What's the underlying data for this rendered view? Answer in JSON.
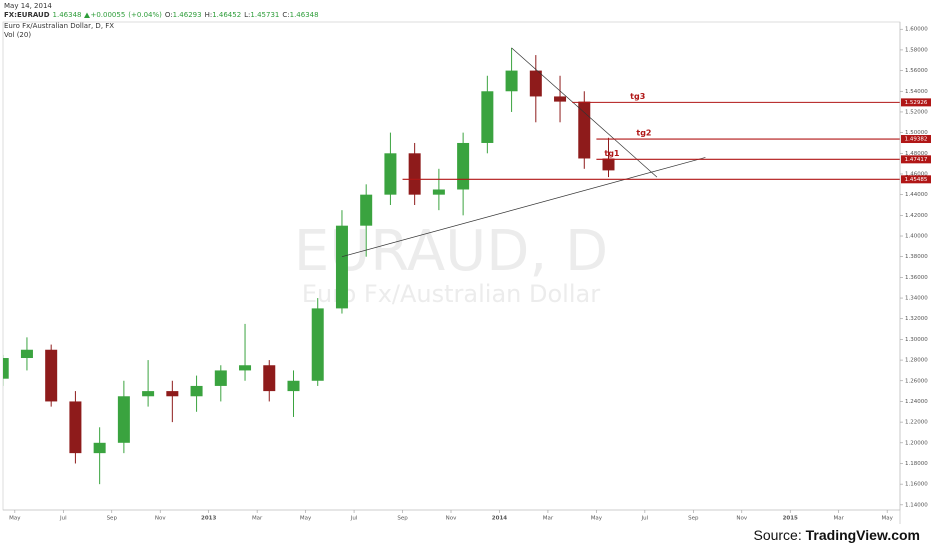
{
  "header": {
    "date": "May 14, 2014",
    "symbol": "FX:EURAUD",
    "last": 1.46348,
    "change": "+0.00055",
    "change_pct": "(+0.04%)",
    "ohlc": [
      {
        "label": "O:",
        "value": 1.46293
      },
      {
        "label": "H:",
        "value": 1.46452
      },
      {
        "label": "L:",
        "value": 1.45731
      },
      {
        "label": "C:",
        "value": 1.46348
      }
    ]
  },
  "watermark": {
    "symbol": "EURAUD, D",
    "name": "Euro Fx/Australian Dollar"
  },
  "source": {
    "prefix": "Source:",
    "site": "TradingView.com"
  },
  "chart_data": {
    "type": "candlestick",
    "title": "Euro Fx/Australian Dollar, D, FX",
    "subtitle": "Vol (20)",
    "x": [
      "2012-04",
      "2012-05",
      "2012-06",
      "2012-07",
      "2012-08",
      "2012-09",
      "2012-10",
      "2012-11",
      "2012-12",
      "2013-01",
      "2013-02",
      "2013-03",
      "2013-04",
      "2013-05",
      "2013-06",
      "2013-07",
      "2013-08",
      "2013-09",
      "2013-10",
      "2013-11",
      "2013-12",
      "2014-01",
      "2014-02",
      "2014-03",
      "2014-04",
      "2014-05"
    ],
    "open": [
      1.262,
      1.282,
      1.29,
      1.24,
      1.19,
      1.2,
      1.245,
      1.25,
      1.245,
      1.255,
      1.27,
      1.275,
      1.25,
      1.26,
      1.33,
      1.41,
      1.44,
      1.48,
      1.44,
      1.445,
      1.49,
      1.54,
      1.56,
      1.535,
      1.53,
      1.475
    ],
    "high": [
      1.285,
      1.302,
      1.295,
      1.25,
      1.215,
      1.26,
      1.28,
      1.26,
      1.265,
      1.275,
      1.315,
      1.28,
      1.27,
      1.34,
      1.425,
      1.45,
      1.5,
      1.49,
      1.465,
      1.5,
      1.555,
      1.582,
      1.575,
      1.555,
      1.54,
      1.495
    ],
    "low": [
      1.255,
      1.27,
      1.235,
      1.18,
      1.16,
      1.19,
      1.235,
      1.22,
      1.23,
      1.24,
      1.26,
      1.24,
      1.225,
      1.255,
      1.325,
      1.38,
      1.43,
      1.43,
      1.425,
      1.42,
      1.48,
      1.52,
      1.51,
      1.51,
      1.465,
      1.457
    ],
    "close": [
      1.282,
      1.29,
      1.24,
      1.19,
      1.2,
      1.245,
      1.25,
      1.245,
      1.255,
      1.27,
      1.275,
      1.25,
      1.26,
      1.33,
      1.41,
      1.44,
      1.48,
      1.44,
      1.445,
      1.49,
      1.54,
      1.56,
      1.535,
      1.53,
      1.475,
      1.46348
    ],
    "up_color": "#3aa33f",
    "down_color": "#8e1b1b",
    "level_color": "#b01616",
    "xlim": [
      "2012-04",
      "2015-06"
    ],
    "xticks": [
      {
        "value": "2012-05",
        "label": "May"
      },
      {
        "value": "2012-07",
        "label": "Jul"
      },
      {
        "value": "2012-09",
        "label": "Sep"
      },
      {
        "value": "2012-11",
        "label": "Nov"
      },
      {
        "value": "2013-01",
        "label": "2013"
      },
      {
        "value": "2013-03",
        "label": "Mar"
      },
      {
        "value": "2013-05",
        "label": "May"
      },
      {
        "value": "2013-07",
        "label": "Jul"
      },
      {
        "value": "2013-09",
        "label": "Sep"
      },
      {
        "value": "2013-11",
        "label": "Nov"
      },
      {
        "value": "2014-01",
        "label": "2014"
      },
      {
        "value": "2014-03",
        "label": "Mar"
      },
      {
        "value": "2014-05",
        "label": "May"
      },
      {
        "value": "2014-07",
        "label": "Jul"
      },
      {
        "value": "2014-09",
        "label": "Sep"
      },
      {
        "value": "2014-11",
        "label": "Nov"
      },
      {
        "value": "2015-01",
        "label": "2015"
      },
      {
        "value": "2015-03",
        "label": "Mar"
      },
      {
        "value": "2015-05",
        "label": "May"
      }
    ],
    "ylim": [
      1.135,
      1.607
    ],
    "yticks": [
      {
        "value": 1.14,
        "label": "1.14000"
      },
      {
        "value": 1.16,
        "label": "1.16000"
      },
      {
        "value": 1.18,
        "label": "1.18000"
      },
      {
        "value": 1.2,
        "label": "1.20000"
      },
      {
        "value": 1.22,
        "label": "1.22000"
      },
      {
        "value": 1.24,
        "label": "1.24000"
      },
      {
        "value": 1.26,
        "label": "1.26000"
      },
      {
        "value": 1.28,
        "label": "1.28000"
      },
      {
        "value": 1.3,
        "label": "1.30000"
      },
      {
        "value": 1.32,
        "label": "1.32000"
      },
      {
        "value": 1.34,
        "label": "1.34000"
      },
      {
        "value": 1.36,
        "label": "1.36000"
      },
      {
        "value": 1.38,
        "label": "1.38000"
      },
      {
        "value": 1.4,
        "label": "1.40000"
      },
      {
        "value": 1.42,
        "label": "1.42000"
      },
      {
        "value": 1.44,
        "label": "1.44000"
      },
      {
        "value": 1.46,
        "label": "1.46000"
      },
      {
        "value": 1.48,
        "label": "1.48000"
      },
      {
        "value": 1.5,
        "label": "1.50000"
      },
      {
        "value": 1.52,
        "label": "1.52000"
      },
      {
        "value": 1.54,
        "label": "1.54000"
      },
      {
        "value": 1.56,
        "label": "1.56000"
      },
      {
        "value": 1.58,
        "label": "1.58000"
      },
      {
        "value": 1.6,
        "label": "1.60000"
      }
    ],
    "levels": [
      {
        "name": "tg3",
        "value": 1.52926,
        "start": "2014-04"
      },
      {
        "name": "tg2",
        "value": 1.49382,
        "start": "2014-05"
      },
      {
        "name": "tg1",
        "value": 1.47417,
        "start": "2014-05"
      },
      {
        "value": 1.45485,
        "start": "2013-09"
      }
    ],
    "trendlines": [
      {
        "x": [
          "2014-01",
          "2014-07"
        ],
        "y": [
          1.582,
          1.457
        ]
      },
      {
        "x": [
          "2013-06",
          "2014-09"
        ],
        "y": [
          1.38,
          1.476
        ]
      }
    ]
  }
}
